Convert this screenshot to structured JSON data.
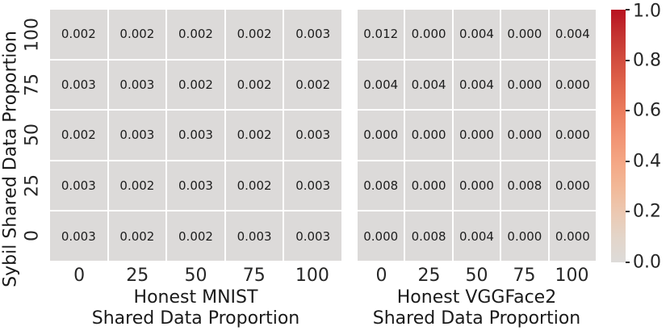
{
  "figure": {
    "background": "#ffffff",
    "ylabel": "Sybil Shared Data Proportion"
  },
  "chart_data": [
    {
      "type": "heatmap",
      "name": "honest-mnist",
      "xlabel_lines": [
        "Honest MNIST",
        "Shared Data Proportion"
      ],
      "ylabel": "Sybil Shared Data Proportion",
      "x_ticks": [
        "0",
        "25",
        "50",
        "75",
        "100"
      ],
      "y_ticks": [
        "100",
        "75",
        "50",
        "25",
        "0"
      ],
      "rows_top_to_bottom": [
        [
          0.002,
          0.002,
          0.002,
          0.002,
          0.003
        ],
        [
          0.003,
          0.003,
          0.002,
          0.002,
          0.002
        ],
        [
          0.002,
          0.003,
          0.003,
          0.002,
          0.003
        ],
        [
          0.003,
          0.002,
          0.003,
          0.002,
          0.003
        ],
        [
          0.003,
          0.002,
          0.002,
          0.003,
          0.003
        ]
      ],
      "value_format_decimals": 3,
      "cell_color": "#dcdad9"
    },
    {
      "type": "heatmap",
      "name": "honest-vggface2",
      "xlabel_lines": [
        "Honest VGGFace2",
        "Shared Data Proportion"
      ],
      "ylabel": "Sybil Shared Data Proportion",
      "x_ticks": [
        "0",
        "25",
        "50",
        "75",
        "100"
      ],
      "y_ticks": [
        "100",
        "75",
        "50",
        "25",
        "0"
      ],
      "rows_top_to_bottom": [
        [
          0.012,
          0.0,
          0.004,
          0.0,
          0.004
        ],
        [
          0.004,
          0.004,
          0.004,
          0.0,
          0.0
        ],
        [
          0.0,
          0.0,
          0.0,
          0.0,
          0.0
        ],
        [
          0.008,
          0.0,
          0.0,
          0.008,
          0.0
        ],
        [
          0.0,
          0.008,
          0.004,
          0.0,
          0.0
        ]
      ],
      "value_format_decimals": 3,
      "cell_color": "#dcdad9"
    }
  ],
  "colorbar": {
    "vmin": 0.0,
    "vmax": 1.0,
    "ticks_top_to_bottom": [
      "1.0",
      "0.8",
      "0.6",
      "0.4",
      "0.2",
      "0.0"
    ],
    "color_low": "#dddbd9",
    "color_high": "#b81220",
    "gradient_stops_low_to_high": [
      "#dddbd9",
      "#e3d5c9",
      "#ecc8b1",
      "#f2b897",
      "#f4a684",
      "#f19272",
      "#ea7c5d",
      "#e0654c",
      "#d24d3e",
      "#c43331",
      "#b81220"
    ]
  }
}
